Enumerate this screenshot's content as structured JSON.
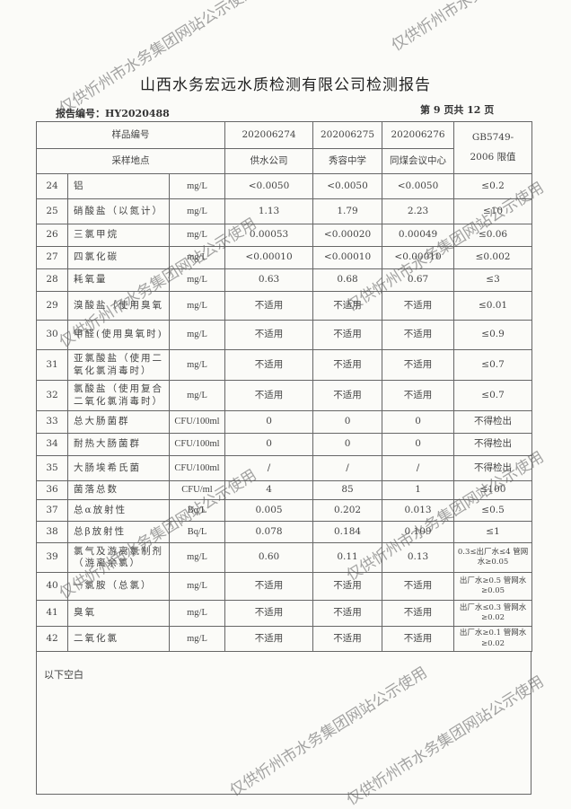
{
  "title": "山西水务宏远水质检测有限公司检测报告",
  "report_no": "报告编号：HY2020488",
  "page": "第 9 页共 12 页",
  "watermark": "仅供忻州市水务集团网站公示使用",
  "header": {
    "sample_no_label": "样品编号",
    "site_label": "采样地点",
    "samples": [
      {
        "no": "202006274",
        "site": "供水公司"
      },
      {
        "no": "202006275",
        "site": "秀容中学"
      },
      {
        "no": "202006276",
        "site": "同煤会议中心"
      }
    ],
    "limit_label_1": "GB5749-",
    "limit_label_2": "2006 限值"
  },
  "rows": [
    {
      "n": "24",
      "name": "铝",
      "unit": "mg/L",
      "v": [
        "<0.0050",
        "<0.0050",
        "<0.0050"
      ],
      "limit": "≤0.2"
    },
    {
      "n": "25",
      "name": "硝酸盐（以氮计）",
      "unit": "mg/L",
      "v": [
        "1.13",
        "1.79",
        "2.23"
      ],
      "limit": "≤10"
    },
    {
      "n": "26",
      "name": "三氯甲烷",
      "unit": "mg/L",
      "v": [
        "0.00053",
        "<0.00020",
        "0.00049"
      ],
      "limit": "≤0.06"
    },
    {
      "n": "27",
      "name": "四氯化碳",
      "unit": "mg/L",
      "v": [
        "<0.00010",
        "<0.00010",
        "<0.00010"
      ],
      "limit": "≤0.002"
    },
    {
      "n": "28",
      "name": "耗氧量",
      "unit": "mg/L",
      "v": [
        "0.63",
        "0.68",
        "0.67"
      ],
      "limit": "≤3"
    },
    {
      "n": "29",
      "name": "溴酸盐（使用臭氧",
      "unit": "mg/L",
      "v": [
        "不适用",
        "不适用",
        "不适用"
      ],
      "limit": "≤0.01"
    },
    {
      "n": "30",
      "name": "甲醛(使用臭氧时)",
      "unit": "mg/L",
      "v": [
        "不适用",
        "不适用",
        "不适用"
      ],
      "limit": "≤0.9"
    },
    {
      "n": "31",
      "name": "亚氯酸盐（使用二氧化氯消毒时）",
      "unit": "mg/L",
      "v": [
        "不适用",
        "不适用",
        "不适用"
      ],
      "limit": "≤0.7"
    },
    {
      "n": "32",
      "name": "氯酸盐（使用复合二氧化氯消毒时）",
      "unit": "mg/L",
      "v": [
        "不适用",
        "不适用",
        "不适用"
      ],
      "limit": "≤0.7"
    },
    {
      "n": "33",
      "name": "总大肠菌群",
      "unit": "CFU/100ml",
      "v": [
        "0",
        "0",
        "0"
      ],
      "limit": "不得检出"
    },
    {
      "n": "34",
      "name": "耐热大肠菌群",
      "unit": "CFU/100ml",
      "v": [
        "0",
        "0",
        "0"
      ],
      "limit": "不得检出"
    },
    {
      "n": "35",
      "name": "大肠埃希氏菌",
      "unit": "CFU/100ml",
      "v": [
        "/",
        "/",
        "/"
      ],
      "limit": "不得检出"
    },
    {
      "n": "36",
      "name": "菌落总数",
      "unit": "CFU/ml",
      "v": [
        "4",
        "85",
        "1"
      ],
      "limit": "≤100"
    },
    {
      "n": "37",
      "name": "总α放射性",
      "unit": "Bq/L",
      "v": [
        "0.005",
        "0.202",
        "0.013"
      ],
      "limit": "≤0.5"
    },
    {
      "n": "38",
      "name": "总β放射性",
      "unit": "Bq/L",
      "v": [
        "0.078",
        "0.184",
        "0.109"
      ],
      "limit": "≤1"
    },
    {
      "n": "39",
      "name": "氯气及游离氯制剂（游离余氯）",
      "unit": "mg/L",
      "v": [
        "0.60",
        "0.11",
        "0.13"
      ],
      "limit": "0.3≤出厂水≤4 管网水≥0.05"
    },
    {
      "n": "40",
      "name": "一氯胺（总氯）",
      "unit": "mg/L",
      "v": [
        "不适用",
        "不适用",
        "不适用"
      ],
      "limit": "出厂水≥0.5 管网水≥0.05"
    },
    {
      "n": "41",
      "name": "臭氧",
      "unit": "mg/L",
      "v": [
        "不适用",
        "不适用",
        "不适用"
      ],
      "limit": "出厂水≤0.3 管网水≥0.02"
    },
    {
      "n": "42",
      "name": "二氧化氯",
      "unit": "mg/L",
      "v": [
        "不适用",
        "不适用",
        "不适用"
      ],
      "limit": "出厂水≥0.1 管网水≥0.02"
    }
  ],
  "footer": "以下空白"
}
